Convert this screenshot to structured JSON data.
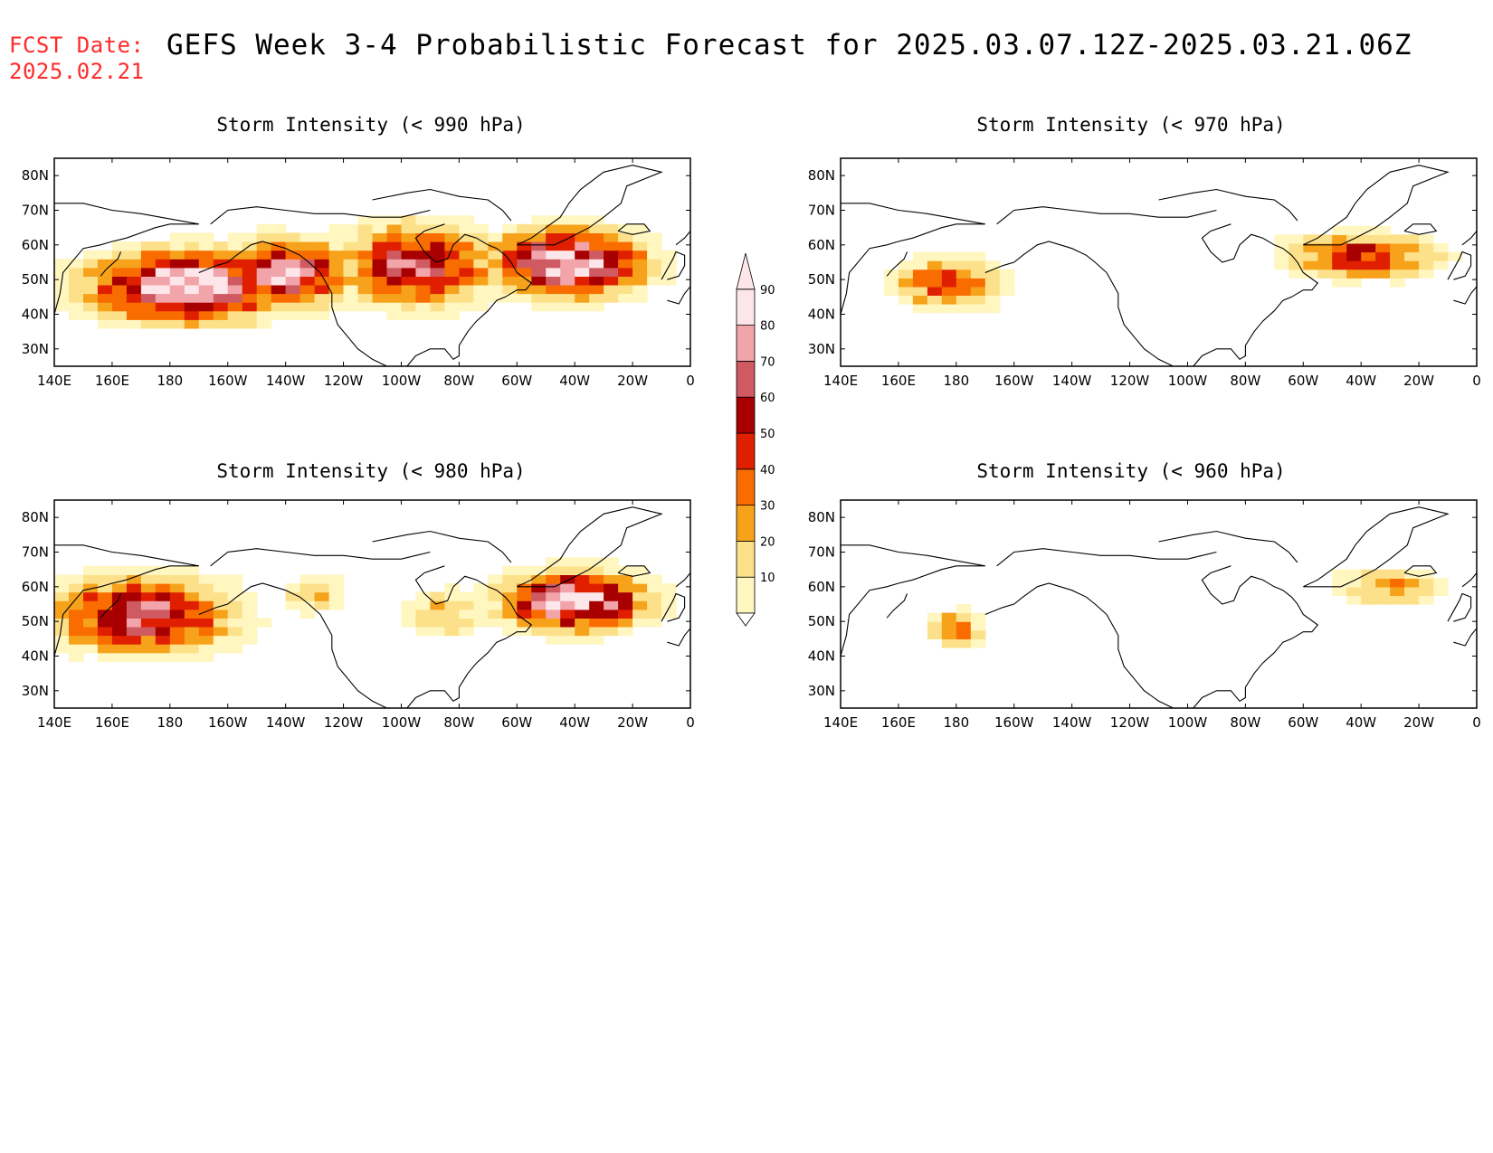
{
  "header": {
    "fcst_label": "FCST Date:",
    "fcst_date": "2025.02.21",
    "title": "GEFS Week 3-4 Probabilistic Forecast for 2025.03.07.12Z-2025.03.21.06Z"
  },
  "axes": {
    "lon_ticks": [
      "140E",
      "160E",
      "180",
      "160W",
      "140W",
      "120W",
      "100W",
      "80W",
      "60W",
      "40W",
      "20W",
      "0"
    ],
    "lat_ticks": [
      "80N",
      "70N",
      "60N",
      "50N",
      "40N",
      "30N"
    ]
  },
  "colorbar": {
    "levels": [
      "10",
      "20",
      "30",
      "40",
      "50",
      "60",
      "70",
      "80",
      "90"
    ],
    "colors": [
      "#fff6c0",
      "#fde18a",
      "#f7a21b",
      "#f96d00",
      "#e01f00",
      "#a80000",
      "#cf5a62",
      "#f1a4aa",
      "#fde6ea"
    ]
  },
  "panels": [
    {
      "title": "Storm Intensity (< 990 hPa)"
    },
    {
      "title": "Storm Intensity (< 970 hPa)"
    },
    {
      "title": "Storm Intensity (< 980 hPa)"
    },
    {
      "title": "Storm Intensity (< 960 hPa)"
    }
  ],
  "chart_data": [
    {
      "type": "heatmap",
      "title": "Storm Intensity (< 990 hPa)",
      "xlim": [
        "140E",
        "0"
      ],
      "ylim": [
        25,
        85
      ],
      "regions": [
        {
          "lon": [
            140,
            200
          ],
          "lat": [
            35,
            62
          ],
          "max_prob": 90
        },
        {
          "lon": [
            200,
            240
          ],
          "lat": [
            38,
            62
          ],
          "max_prob": 70
        },
        {
          "lon": [
            240,
            300
          ],
          "lat": [
            35,
            68
          ],
          "max_prob": 70
        },
        {
          "lon": [
            300,
            350
          ],
          "lat": [
            42,
            68
          ],
          "max_prob": 90
        }
      ]
    },
    {
      "type": "heatmap",
      "title": "Storm Intensity (< 970 hPa)",
      "xlim": [
        "140E",
        "0"
      ],
      "ylim": [
        25,
        85
      ],
      "regions": [
        {
          "lon": [
            150,
            200
          ],
          "lat": [
            38,
            62
          ],
          "max_prob": 50
        },
        {
          "lon": [
            290,
            350
          ],
          "lat": [
            48,
            67
          ],
          "max_prob": 60
        }
      ]
    },
    {
      "type": "heatmap",
      "title": "Storm Intensity (< 980 hPa)",
      "xlim": [
        "140E",
        "0"
      ],
      "ylim": [
        25,
        85
      ],
      "regions": [
        {
          "lon": [
            140,
            240
          ],
          "lat": [
            35,
            68
          ],
          "max_prob": 80
        },
        {
          "lon": [
            270,
            360
          ],
          "lat": [
            40,
            70
          ],
          "max_prob": 90
        }
      ]
    },
    {
      "type": "heatmap",
      "title": "Storm Intensity (< 960 hPa)",
      "xlim": [
        "140E",
        "0"
      ],
      "ylim": [
        25,
        85
      ],
      "regions": [
        {
          "lon": [
            170,
            195
          ],
          "lat": [
            40,
            55
          ],
          "max_prob": 40
        },
        {
          "lon": [
            305,
            350
          ],
          "lat": [
            52,
            67
          ],
          "max_prob": 40
        }
      ]
    }
  ]
}
